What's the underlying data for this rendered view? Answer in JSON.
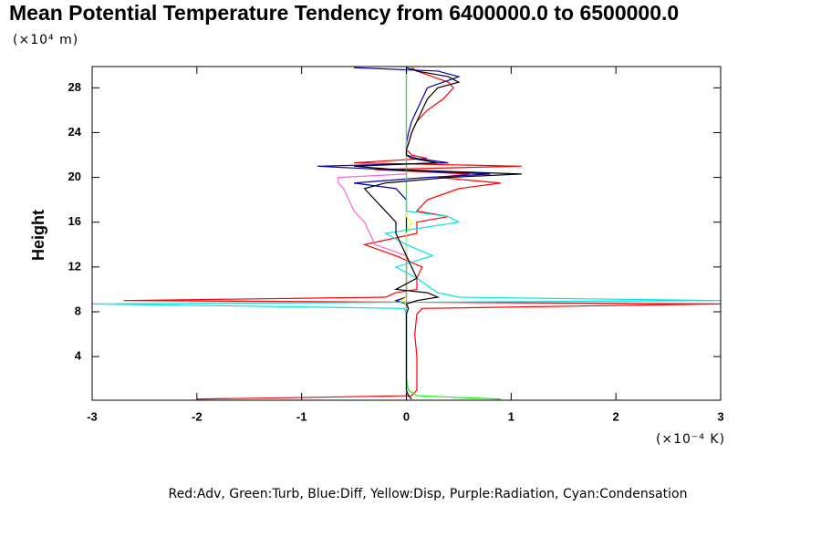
{
  "chart_data": {
    "type": "profile",
    "title": "Mean Potential Temperature Tendency from 6400000.0 to 6500000.0",
    "y_label": "Height",
    "y_unit": "(×10⁴ m)",
    "x_unit": "(×10⁻⁴ K)",
    "caption": "Red:Adv, Green:Turb, Blue:Diff, Yellow:Disp, Purple:Radiation, Cyan:Condensation",
    "xlim": [
      -3,
      3
    ],
    "xticks": [
      -3,
      -2,
      -1,
      0,
      1,
      2,
      3
    ],
    "ylim": [
      0.1,
      29.9
    ],
    "yticks": [
      4,
      8,
      12,
      16,
      20,
      24,
      28
    ],
    "heights": [
      0.2,
      0.5,
      1,
      2,
      4,
      6,
      7.8,
      8.3,
      8.7,
      9,
      9.3,
      9.7,
      10,
      11,
      12,
      13,
      14,
      15,
      16,
      16.5,
      17,
      18,
      19,
      19.5,
      20,
      20.3,
      20.7,
      21,
      21.3,
      21.7,
      22,
      22.5,
      23,
      24,
      25,
      26,
      27,
      28,
      28.5,
      29,
      29.5,
      29.8
    ],
    "series": [
      {
        "color": "#ff0000",
        "values": [
          -2,
          0.05,
          0.1,
          0.1,
          0.1,
          0.08,
          0.1,
          0.15,
          3,
          -2.7,
          -0.2,
          -0.1,
          0.1,
          0.1,
          0.15,
          -0.1,
          -0.4,
          0.1,
          0.1,
          0.4,
          0.1,
          0.2,
          0.5,
          0.9,
          0.3,
          0.6,
          -0.3,
          1.1,
          -0.5,
          0.2,
          0.05,
          0,
          0.02,
          0.05,
          0.1,
          0.2,
          0.35,
          0.45,
          0.4,
          0.25,
          0.1,
          0.05
        ]
      },
      {
        "color": "#00ff00",
        "values": [
          0.9,
          0.1,
          0.02,
          0,
          0,
          0,
          0,
          0,
          0,
          -0.1,
          0,
          0,
          0,
          0,
          0,
          0,
          0,
          0,
          0,
          0,
          0,
          0,
          0,
          0,
          0,
          0,
          0,
          0,
          0,
          0,
          0,
          0,
          0,
          0,
          0,
          0,
          0,
          0,
          0,
          0,
          0,
          0
        ]
      },
      {
        "color": "#0000aa",
        "values": [
          0,
          0,
          0,
          0,
          0,
          0,
          0,
          0,
          0,
          -0.1,
          0,
          0,
          0,
          0,
          0,
          0,
          0,
          0,
          0,
          0,
          0,
          0,
          -0.1,
          -0.5,
          0.2,
          0.8,
          -0.2,
          -0.85,
          0.4,
          0.1,
          0,
          0,
          0,
          0.02,
          0.05,
          0.1,
          0.15,
          0.2,
          0.35,
          0.5,
          0.3,
          -0.5
        ]
      },
      {
        "color": "#ffff00",
        "values": [
          0,
          0,
          0,
          0,
          0,
          0,
          0,
          0,
          0,
          -0.05,
          0,
          0,
          0,
          0,
          0,
          0,
          0,
          0,
          0.05,
          0,
          0,
          0,
          0,
          0,
          0,
          0,
          0,
          0,
          0,
          0,
          0,
          0,
          0,
          0,
          0,
          0,
          0,
          0,
          0,
          0,
          0,
          0
        ]
      },
      {
        "color": "#ff66cc",
        "values": [
          0,
          0,
          0,
          0,
          0,
          0,
          0,
          0,
          0,
          0,
          0,
          0,
          0,
          0,
          0,
          0,
          -0.3,
          -0.35,
          -0.4,
          -0.45,
          -0.5,
          -0.55,
          -0.6,
          -0.65,
          -0.65,
          0,
          0,
          0,
          0,
          0,
          0,
          0,
          0,
          0,
          0,
          0,
          0,
          0,
          0,
          0,
          0,
          0
        ]
      },
      {
        "color": "#00e5e5",
        "values": [
          0,
          0,
          0,
          0,
          0,
          0,
          0,
          -0.02,
          -3,
          3,
          0.5,
          0.3,
          0.25,
          0.1,
          -0.1,
          0.25,
          0,
          -0.2,
          0.5,
          0.4,
          0,
          0,
          0,
          0,
          0,
          0,
          0,
          0,
          0,
          0,
          0,
          0,
          0,
          0,
          0,
          0,
          0,
          0,
          0,
          0,
          0,
          0
        ]
      },
      {
        "color": "#000000",
        "values": [
          0.05,
          0.02,
          0,
          0,
          0,
          0,
          0,
          0.02,
          0,
          0.1,
          0.3,
          0.2,
          -0.1,
          0.1,
          0.05,
          0,
          -0.05,
          -0.1,
          -0.1,
          -0.15,
          -0.2,
          -0.3,
          -0.4,
          -0.2,
          0.4,
          1.1,
          -0.1,
          -0.5,
          0.3,
          0.05,
          0,
          0,
          0.02,
          0.05,
          0.1,
          0.15,
          0.2,
          0.3,
          0.5,
          0.4,
          0.1,
          0
        ]
      }
    ]
  }
}
